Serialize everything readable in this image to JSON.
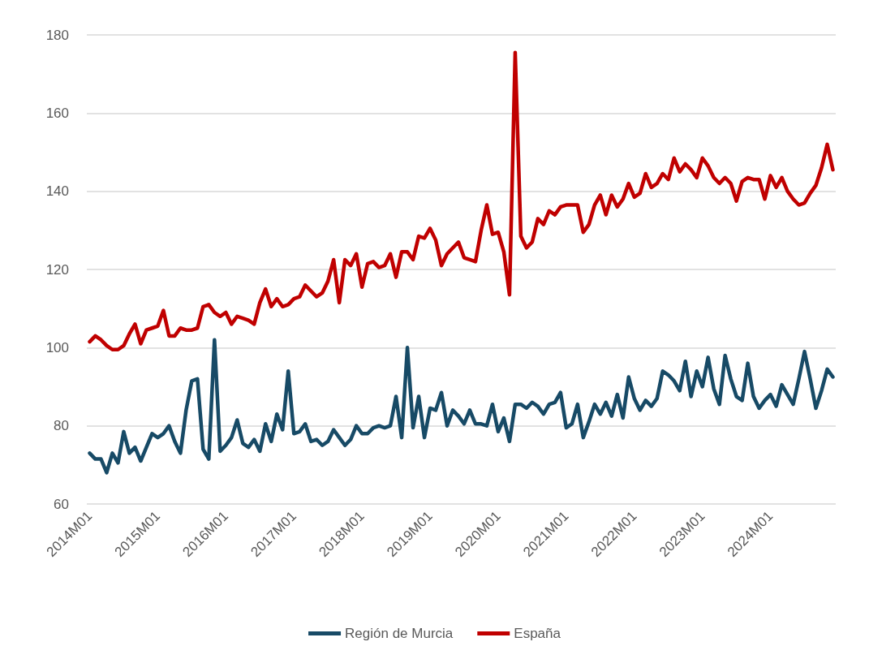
{
  "chart_data": {
    "type": "line",
    "categories": [
      "2014M01",
      null,
      null,
      null,
      null,
      null,
      null,
      null,
      null,
      null,
      null,
      null,
      "2015M01",
      null,
      null,
      null,
      null,
      null,
      null,
      null,
      null,
      null,
      null,
      null,
      "2016M01",
      null,
      null,
      null,
      null,
      null,
      null,
      null,
      null,
      null,
      null,
      null,
      "2017M01",
      null,
      null,
      null,
      null,
      null,
      null,
      null,
      null,
      null,
      null,
      null,
      "2018M01",
      null,
      null,
      null,
      null,
      null,
      null,
      null,
      null,
      null,
      null,
      null,
      "2019M01",
      null,
      null,
      null,
      null,
      null,
      null,
      null,
      null,
      null,
      null,
      null,
      "2020M01",
      null,
      null,
      null,
      null,
      null,
      null,
      null,
      null,
      null,
      null,
      null,
      "2021M01",
      null,
      null,
      null,
      null,
      null,
      null,
      null,
      null,
      null,
      null,
      null,
      "2022M01",
      null,
      null,
      null,
      null,
      null,
      null,
      null,
      null,
      null,
      null,
      null,
      "2023M01",
      null,
      null,
      null,
      null,
      null,
      null,
      null,
      null,
      null,
      null,
      null,
      "2024M01",
      null,
      null,
      null,
      null,
      null,
      null,
      null,
      null,
      null,
      null,
      null
    ],
    "series": [
      {
        "name": "Región de Murcia",
        "color": "#174a66",
        "values": [
          73,
          71.5,
          71.5,
          68,
          73,
          70.5,
          78.5,
          73,
          74.5,
          71,
          74.5,
          78,
          77,
          78,
          80,
          76,
          73,
          84,
          91.5,
          92,
          74,
          71.5,
          102,
          73.5,
          75,
          77,
          81.5,
          75.5,
          74.5,
          76.5,
          73.5,
          80.5,
          76,
          83,
          79,
          94,
          78,
          78.5,
          80.5,
          76,
          76.5,
          75,
          76,
          79,
          77,
          75,
          76.5,
          80,
          78,
          78,
          79.5,
          80,
          79.5,
          80,
          87.5,
          77,
          100,
          79.5,
          87.5,
          77,
          84.5,
          84,
          88.5,
          80,
          84,
          82.5,
          80.5,
          84,
          80.5,
          80.5,
          80,
          85.5,
          78.5,
          82,
          76,
          85.5,
          85.5,
          84.5,
          86,
          85,
          83,
          85.5,
          86,
          88.5,
          79.5,
          80.5,
          85.5,
          77,
          81,
          85.5,
          83,
          86,
          82.5,
          88,
          82,
          92.5,
          87,
          84,
          86.5,
          85,
          87,
          94,
          93,
          91.5,
          89,
          96.5,
          87.5,
          94,
          90,
          97.5,
          89.5,
          85.5,
          98,
          92,
          87.5,
          86.5,
          96,
          87.5,
          84.5,
          86.5,
          88,
          85,
          90.5,
          88,
          85.5,
          92,
          99,
          92,
          84.5,
          89,
          94.5,
          92.5
        ]
      },
      {
        "name": "España",
        "color": "#c00000",
        "values": [
          101.5,
          103,
          102,
          100.5,
          99.5,
          99.5,
          100.5,
          103.5,
          106,
          101,
          104.5,
          105,
          105.5,
          109.5,
          103,
          103,
          105,
          104.5,
          104.5,
          105,
          110.5,
          111,
          109,
          108,
          109,
          106,
          108,
          107.5,
          107,
          106,
          111.5,
          115,
          110.5,
          112.5,
          110.5,
          111,
          112.5,
          113,
          116,
          114.5,
          113,
          114,
          117,
          122.5,
          111.5,
          122.5,
          121,
          124,
          115.5,
          121.5,
          122,
          120.5,
          121,
          124,
          118,
          124.5,
          124.5,
          122.5,
          128.5,
          128,
          130.5,
          127.5,
          121,
          124,
          125.5,
          127,
          123,
          122.5,
          122,
          130,
          136.5,
          129,
          129.5,
          124.5,
          113.5,
          175.5,
          128.5,
          125.5,
          127,
          133,
          131.5,
          135,
          134,
          136,
          136.5,
          136.5,
          136.5,
          129.5,
          131.5,
          136.5,
          139,
          134,
          139,
          136,
          138,
          142,
          138.5,
          139.5,
          144.5,
          141,
          142,
          144.5,
          143,
          148.5,
          145,
          147,
          145.5,
          143.5,
          148.5,
          146.5,
          143.5,
          142,
          143.5,
          142,
          137.5,
          142.5,
          143.5,
          143,
          143,
          138,
          144,
          141,
          143.5,
          140,
          138,
          136.5,
          137,
          139.5,
          141.5,
          146,
          152,
          145.5
        ]
      }
    ],
    "ylim": [
      60,
      180
    ],
    "yticks": [
      60,
      80,
      100,
      120,
      140,
      160,
      180
    ],
    "grid": "y",
    "legend": "bottom",
    "marker": "none",
    "line_style": "solid"
  }
}
